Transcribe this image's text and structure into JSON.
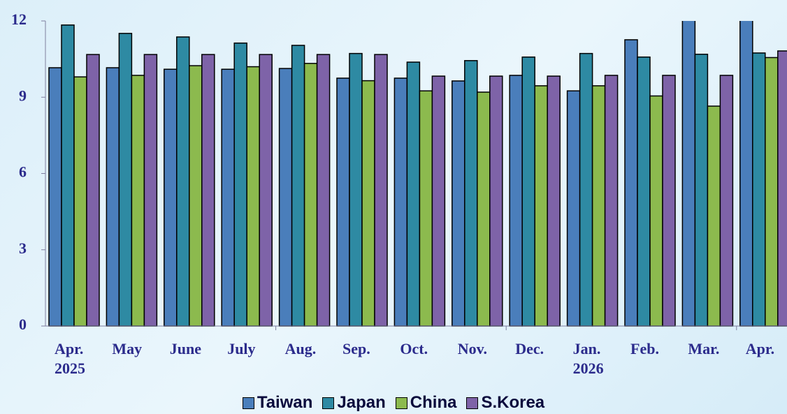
{
  "chart_data": {
    "type": "bar",
    "categories": [
      "Apr.\n2025",
      "May",
      "June",
      "July",
      "Aug.",
      "Sep.",
      "Oct.",
      "Nov.",
      "Dec.",
      "Jan.\n2026",
      "Feb.",
      "Mar.",
      "Apr."
    ],
    "series": [
      {
        "name": "Taiwan",
        "color": "#4a7ebb",
        "values": [
          10.16,
          10.16,
          10.1,
          10.1,
          10.13,
          9.75,
          9.75,
          9.64,
          9.86,
          9.25,
          11.26,
          12.5,
          12.5
        ]
      },
      {
        "name": "Japan",
        "color": "#2e8aa3",
        "values": [
          11.84,
          11.51,
          11.37,
          11.13,
          11.04,
          10.72,
          10.38,
          10.44,
          10.58,
          10.72,
          10.58,
          10.69,
          10.74
        ]
      },
      {
        "name": "China",
        "color": "#8cba4e",
        "values": [
          9.8,
          9.86,
          10.24,
          10.2,
          10.33,
          9.65,
          9.25,
          9.2,
          9.45,
          9.45,
          9.05,
          8.65,
          10.56
        ]
      },
      {
        "name": "S.Korea",
        "color": "#7e63a8",
        "values": [
          10.68,
          10.68,
          10.68,
          10.68,
          10.68,
          10.68,
          9.83,
          9.83,
          9.83,
          9.86,
          9.86,
          9.86,
          10.82
        ]
      }
    ],
    "ylim": [
      0,
      12
    ],
    "yticks": [
      0,
      3,
      6,
      9,
      12
    ]
  }
}
